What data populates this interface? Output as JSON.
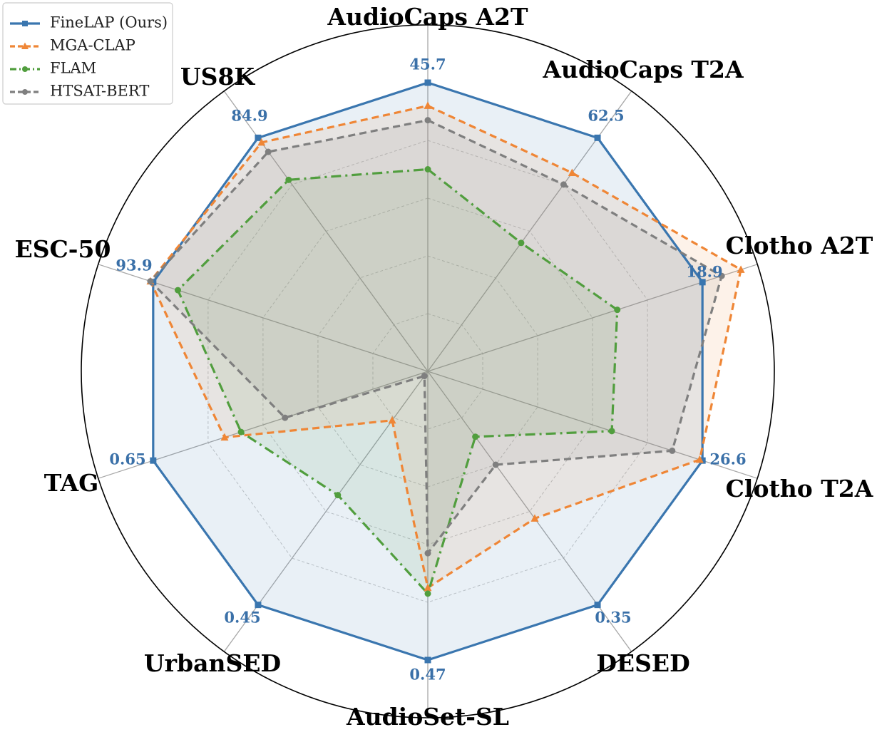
{
  "chart_data": {
    "type": "radar",
    "axes": [
      "AudioCaps A2T",
      "AudioCaps T2A",
      "Clotho A2T",
      "Clotho T2A",
      "DESED",
      "AudioSet-SL",
      "UrbanSED",
      "TAG",
      "ESC-50",
      "US8K"
    ],
    "max_labels": [
      "45.7",
      "62.5",
      "18.9",
      "26.6",
      "0.35",
      "0.47",
      "0.45",
      "0.65",
      "93.9",
      "84.9"
    ],
    "scale": "each axis normalized so FineLAP (Ours) = 1.0",
    "rmax": 1.2,
    "grid_levels": [
      0.2,
      0.4,
      0.6,
      0.8,
      1.0,
      1.2
    ],
    "series": [
      {
        "name": "FineLAP (Ours)",
        "color": "#3a76af",
        "dash": "solid",
        "marker": "square",
        "values": [
          1.0,
          1.0,
          1.0,
          1.0,
          1.0,
          1.0,
          1.0,
          1.0,
          1.0,
          1.0
        ]
      },
      {
        "name": "MGA-CLAP",
        "color": "#ef8636",
        "dash": "dashed",
        "marker": "triangle",
        "values": [
          0.92,
          0.85,
          1.14,
          0.99,
          0.63,
          0.75,
          0.21,
          0.74,
          1.01,
          0.98
        ]
      },
      {
        "name": "FLAM",
        "color": "#519e3e",
        "dash": "dashdot",
        "marker": "circle",
        "values": [
          0.7,
          0.55,
          0.69,
          0.67,
          0.28,
          0.77,
          0.53,
          0.68,
          0.91,
          0.82
        ]
      },
      {
        "name": "HTSAT-BERT",
        "color": "#7f7f7f",
        "dash": "dashed",
        "marker": "circle",
        "values": [
          0.87,
          0.8,
          1.07,
          0.89,
          0.4,
          0.63,
          0.02,
          0.52,
          1.01,
          0.94
        ]
      }
    ],
    "legend": "top-left",
    "grid": true
  }
}
